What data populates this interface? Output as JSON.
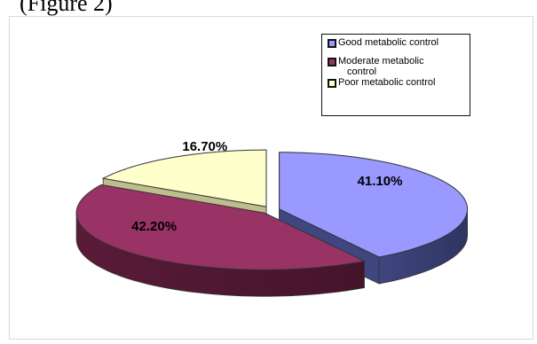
{
  "page": {
    "top_text": "(Figure 2)"
  },
  "colors": {
    "good": "#9999ff",
    "good_side": "#3f4680",
    "moderate": "#993366",
    "moderate_side": "#5a1b38",
    "poor": "#ffffcc",
    "poor_side": "#bdbd8f",
    "legend_swatch_border": "#111111"
  },
  "chart_data": {
    "type": "pie",
    "style": "3d-exploded",
    "title": "",
    "legend_position": "top-right",
    "series": [
      {
        "name": "Good metabolic control",
        "value": 41.1,
        "label": "41.10%",
        "color": "#9999ff"
      },
      {
        "name": "Moderate metabolic control",
        "value": 42.2,
        "label": "42.20%",
        "color": "#993366"
      },
      {
        "name": "Poor metabolic control",
        "value": 16.7,
        "label": "16.70%",
        "color": "#ffffcc"
      }
    ]
  },
  "legend": {
    "items": [
      {
        "line1": "Good metabolic control",
        "line2": ""
      },
      {
        "line1": "Moderate metabolic",
        "line2": "control"
      },
      {
        "line1": "Poor metabolic control",
        "line2": ""
      }
    ]
  }
}
